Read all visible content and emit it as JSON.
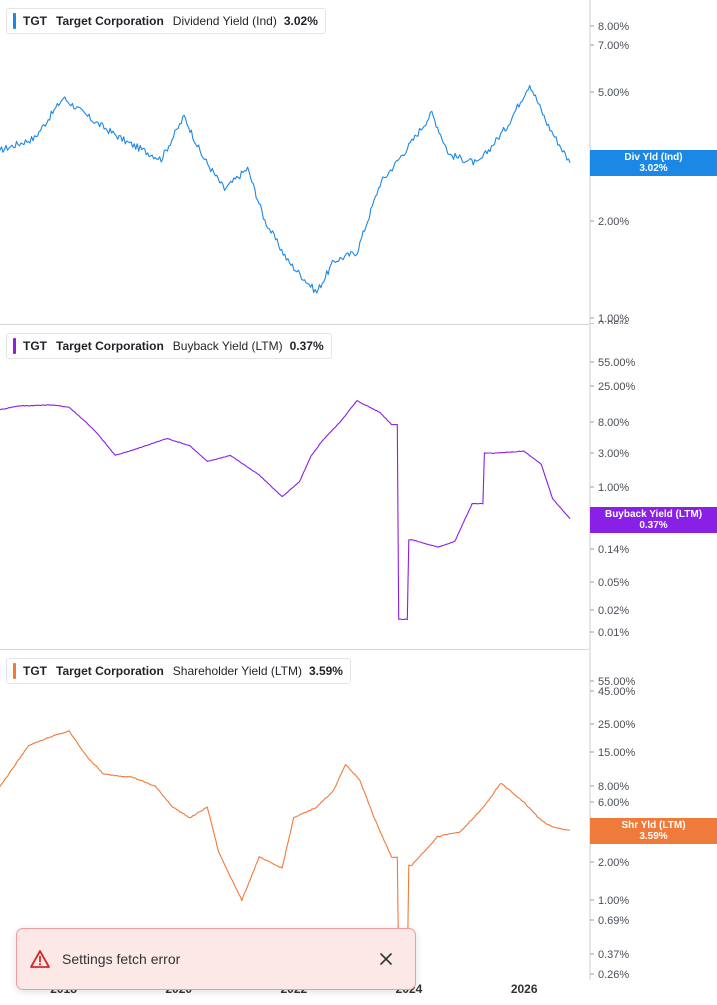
{
  "ticker": "TGT",
  "company": "Target Corporation",
  "toast": {
    "message": "Settings fetch error"
  },
  "x_axis": {
    "labels": [
      "2018",
      "2020",
      "2022",
      "2024",
      "2026"
    ]
  },
  "chart_data": [
    {
      "type": "line",
      "metric": "Dividend Yield (Ind)",
      "value_label": "3.02%",
      "badge_label": "Div Yld (Ind)",
      "color": "#1c88e6",
      "scale": "log",
      "tick_labels": [
        "8.00%",
        "7.00%",
        "5.00%",
        "3.02%",
        "2.00%",
        "1.00%",
        "0.96%"
      ],
      "x": [
        2016.7,
        2017.3,
        2017.8,
        2018.3,
        2018.9,
        2019.5,
        2019.9,
        2020.2,
        2020.6,
        2021.0,
        2021.3,
        2021.7,
        2022.2,
        2022.5,
        2022.9,
        2023.3,
        2023.8,
        2024.2,
        2024.5,
        2025.0,
        2025.5,
        2025.9,
        2026.2,
        2026.6
      ],
      "values": [
        3.3,
        3.6,
        4.8,
        4.1,
        3.5,
        3.1,
        4.2,
        3.2,
        2.5,
        2.9,
        2.0,
        1.5,
        1.2,
        1.5,
        1.6,
        2.6,
        3.4,
        4.3,
        3.2,
        3.0,
        3.9,
        5.3,
        4.0,
        3.02
      ]
    },
    {
      "type": "line",
      "metric": "Buyback Yield (LTM)",
      "value_label": "0.37%",
      "badge_label": "Buyback Yield (LTM)",
      "color": "#8a1fe5",
      "scale": "log",
      "tick_labels": [
        "55.00%",
        "25.00%",
        "8.00%",
        "3.00%",
        "1.00%",
        "0.37%",
        "0.14%",
        "0.05%",
        "0.02%",
        "0.01%"
      ],
      "x": [
        2016.7,
        2017.0,
        2017.6,
        2017.9,
        2018.2,
        2018.4,
        2018.7,
        2019.1,
        2019.6,
        2020.0,
        2020.3,
        2020.7,
        2021.2,
        2021.6,
        2021.9,
        2022.1,
        2022.3,
        2022.6,
        2022.9,
        2023.3,
        2023.5,
        2023.75,
        2023.85,
        2024.3,
        2024.6,
        2024.9,
        2025.3,
        2025.8,
        2026.1,
        2026.3,
        2026.6
      ],
      "values": [
        12,
        13.5,
        14,
        13,
        8,
        5.5,
        2.8,
        3.5,
        4.8,
        3.8,
        2.3,
        2.8,
        1.5,
        0.75,
        1.2,
        2.7,
        4.5,
        8,
        16,
        11,
        7.5,
        0.015,
        0.19,
        0.15,
        0.18,
        0.6,
        3.0,
        3.2,
        2.1,
        0.7,
        0.37
      ]
    },
    {
      "type": "line",
      "metric": "Shareholder Yield (LTM)",
      "value_label": "3.59%",
      "badge_label": "Shr Yld (LTM)",
      "color": "#ef7a3a",
      "scale": "log",
      "tick_labels": [
        "55.00%",
        "45.00%",
        "25.00%",
        "15.00%",
        "8.00%",
        "6.00%",
        "3.59%",
        "2.00%",
        "1.00%",
        "0.69%",
        "0.37%",
        "0.26%"
      ],
      "x": [
        2016.7,
        2017.2,
        2017.6,
        2017.9,
        2018.2,
        2018.5,
        2019.0,
        2019.4,
        2019.7,
        2020.0,
        2020.3,
        2020.5,
        2020.9,
        2021.2,
        2021.6,
        2021.8,
        2022.2,
        2022.5,
        2022.7,
        2022.95,
        2023.2,
        2023.5,
        2023.75,
        2023.85,
        2024.3,
        2024.7,
        2025.1,
        2025.4,
        2025.8,
        2026.1,
        2026.3,
        2026.6
      ],
      "values": [
        8,
        17,
        20,
        22,
        14,
        10,
        9.5,
        8,
        5.5,
        4.5,
        5.5,
        2.4,
        1.0,
        2.2,
        1.8,
        4.5,
        5.5,
        7.5,
        12,
        9,
        4.5,
        2.2,
        0.28,
        1.9,
        3.2,
        3.5,
        5.5,
        8.5,
        6,
        4.3,
        3.8,
        3.59
      ]
    }
  ]
}
